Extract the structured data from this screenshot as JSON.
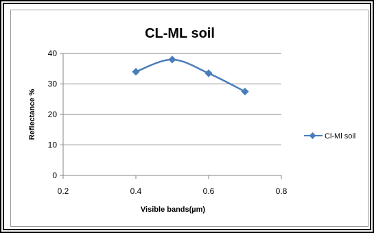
{
  "chart_data": {
    "type": "line",
    "title": "CL-ML soil",
    "xlabel": "Visible bands(µm)",
    "ylabel": "Reflectance %",
    "x_ticks": [
      "0.2",
      "0.4",
      "0.6",
      "0.8"
    ],
    "y_ticks": [
      "0",
      "10",
      "20",
      "30",
      "40"
    ],
    "xlim": [
      0.2,
      0.8
    ],
    "ylim": [
      0,
      40
    ],
    "grid": "horizontal",
    "legend_position": "right",
    "series": [
      {
        "name": "Cl-Ml soil",
        "color": "#4a7ebb",
        "marker": "diamond",
        "x": [
          0.4,
          0.5,
          0.6,
          0.7
        ],
        "y": [
          34,
          38,
          33.5,
          27.5
        ]
      }
    ]
  }
}
